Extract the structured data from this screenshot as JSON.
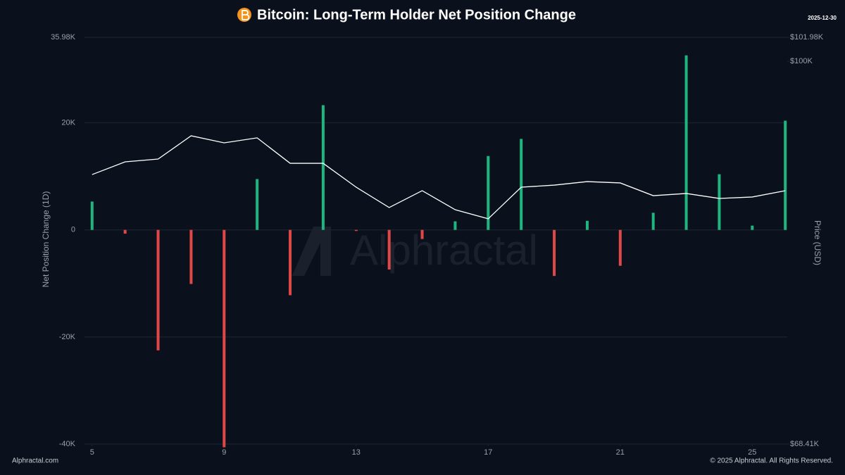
{
  "chart_data": {
    "type": "bar",
    "title": "Bitcoin: Long-Term Holder Net Position Change",
    "date": "2025-12-30",
    "y_label": "Net Position Change (1D)",
    "y2_label": "Price (USD)",
    "watermark": "Alphractal",
    "source": "Alphractal.com",
    "copyright": "© 2025 Alphractal. All Rights Reserved.",
    "x": [
      5,
      6,
      7,
      8,
      9,
      10,
      11,
      12,
      13,
      14,
      15,
      16,
      17,
      18,
      19,
      20,
      21,
      22,
      23,
      24,
      25,
      26
    ],
    "xlim": [
      4.77,
      26.06
    ],
    "xticks": [
      5,
      9,
      13,
      17,
      21,
      25
    ],
    "ylim": [
      -40000,
      35980
    ],
    "yticks": [
      {
        "value": -40000,
        "label": "-40K"
      },
      {
        "value": -20000,
        "label": "-20K"
      },
      0,
      {
        "value": 20000,
        "label": "20K"
      },
      {
        "value": 35980,
        "label": "35.98K"
      }
    ],
    "y2lim": [
      68410,
      101980
    ],
    "y2ticks": [
      {
        "value": 68410,
        "label": "$68.41K"
      },
      {
        "value": 100000,
        "label": "$100K"
      },
      {
        "value": 101980,
        "label": "$101.98K"
      }
    ],
    "grid": true,
    "series": [
      {
        "type": "bar",
        "positive_color": "#1fb57f",
        "negative_color": "#e04848",
        "values": [
          5300,
          -700,
          -22500,
          -10100,
          -40600,
          9500,
          -12200,
          23300,
          -200,
          -7400,
          -1700,
          1600,
          13800,
          17000,
          -8600,
          1700,
          -6700,
          3200,
          32600,
          10400,
          800,
          20400
        ]
      },
      {
        "type": "line",
        "axis": "y2",
        "color": "#ffffff",
        "values": [
          90650,
          91700,
          91930,
          93850,
          93270,
          93680,
          91580,
          91580,
          89610,
          87930,
          89320,
          87750,
          87000,
          89610,
          89780,
          90070,
          89960,
          88910,
          89090,
          88680,
          88800,
          89320
        ]
      }
    ]
  }
}
